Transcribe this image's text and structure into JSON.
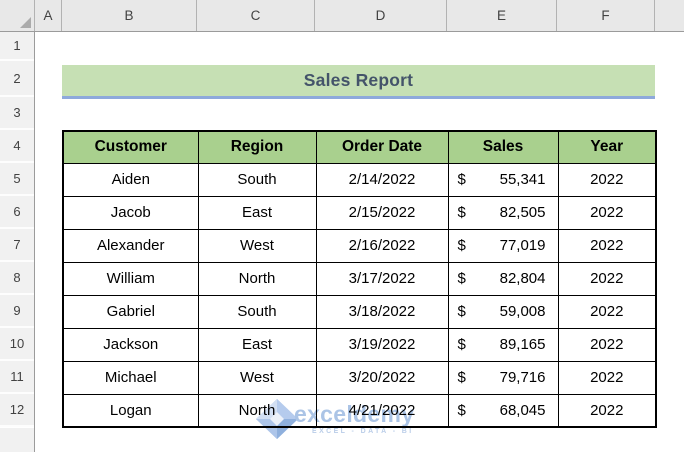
{
  "sheet": {
    "title": "Sales Report",
    "column_headers": [
      "A",
      "B",
      "C",
      "D",
      "E",
      "F"
    ],
    "row_numbers": [
      "1",
      "2",
      "3",
      "4",
      "5",
      "6",
      "7",
      "8",
      "9",
      "10",
      "11",
      "12"
    ]
  },
  "table": {
    "columns": [
      "Customer",
      "Region",
      "Order Date",
      "Sales",
      "Year"
    ],
    "rows": [
      {
        "customer": "Aiden",
        "region": "South",
        "order_date": "2/14/2022",
        "currency": "$",
        "sales": "55,341",
        "year": "2022"
      },
      {
        "customer": "Jacob",
        "region": "East",
        "order_date": "2/15/2022",
        "currency": "$",
        "sales": "82,505",
        "year": "2022"
      },
      {
        "customer": "Alexander",
        "region": "West",
        "order_date": "2/16/2022",
        "currency": "$",
        "sales": "77,019",
        "year": "2022"
      },
      {
        "customer": "William",
        "region": "North",
        "order_date": "3/17/2022",
        "currency": "$",
        "sales": "82,804",
        "year": "2022"
      },
      {
        "customer": "Gabriel",
        "region": "South",
        "order_date": "3/18/2022",
        "currency": "$",
        "sales": "59,008",
        "year": "2022"
      },
      {
        "customer": "Jackson",
        "region": "East",
        "order_date": "3/19/2022",
        "currency": "$",
        "sales": "89,165",
        "year": "2022"
      },
      {
        "customer": "Michael",
        "region": "West",
        "order_date": "3/20/2022",
        "currency": "$",
        "sales": "79,716",
        "year": "2022"
      },
      {
        "customer": "Logan",
        "region": "North",
        "order_date": "4/21/2022",
        "currency": "$",
        "sales": "68,045",
        "year": "2022"
      }
    ]
  },
  "watermark": {
    "brand": "exceldemy",
    "tagline": "EXCEL - DATA - BI"
  },
  "colors": {
    "title_banner_bg": "#C6E0B4",
    "title_underline": "#8EA9DB",
    "title_text": "#44546A",
    "table_header_bg": "#A9D08E",
    "header_strip_bg": "#E8E8E8",
    "watermark_blue": "#9DBAE2"
  }
}
